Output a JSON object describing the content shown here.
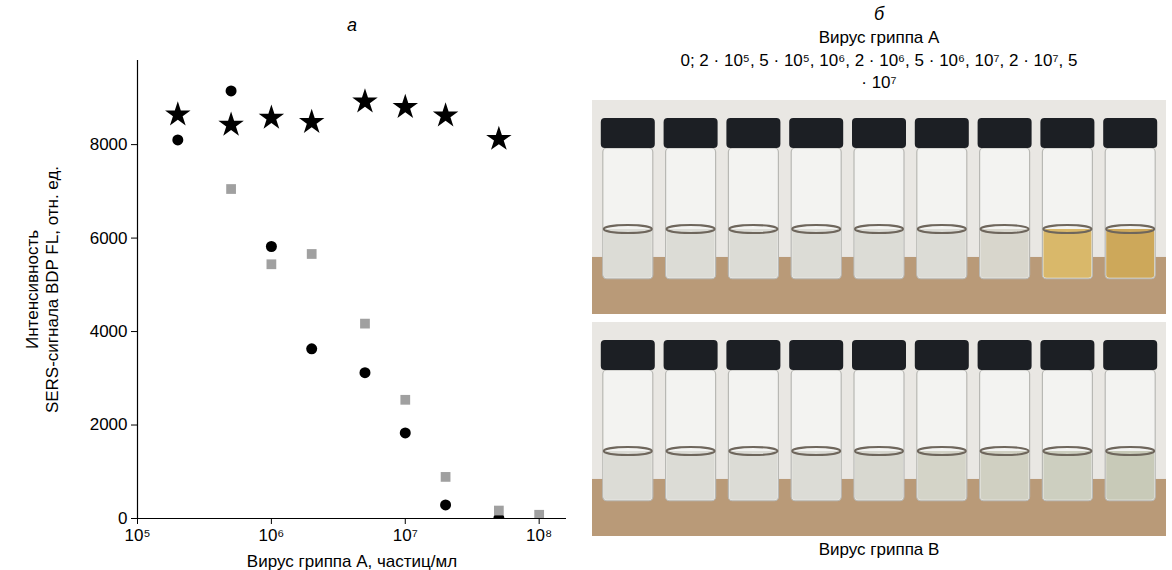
{
  "chart_data": {
    "type": "scatter",
    "title": "а",
    "x_label": "Вирус гриппа А, частиц/мл",
    "y_label": "Интенсивность\nSERS-сигнала BDP FL, отн. ед.",
    "log": "x",
    "xlim": [
      100000,
      160000000
    ],
    "xticks": [
      {
        "value": 100000,
        "label": "10⁵"
      },
      {
        "value": 1000000,
        "label": "10⁶"
      },
      {
        "value": 10000000,
        "label": "10⁷"
      },
      {
        "value": 100000000,
        "label": "10⁸"
      }
    ],
    "ylim": [
      0,
      9800
    ],
    "yticks": [
      0,
      2000,
      4000,
      6000,
      8000
    ],
    "grid": false,
    "series": [
      {
        "color": "#000000",
        "marker": "circle",
        "x": [
          200000,
          500000,
          1000000,
          2000000,
          5000000,
          10000000,
          20000000,
          50000000
        ],
        "values": [
          8100,
          9150,
          5820,
          3630,
          3120,
          1830,
          290,
          0
        ]
      },
      {
        "color": "#a0a0a0",
        "marker": "square",
        "x": [
          500000,
          1000000,
          2000000,
          5000000,
          10000000,
          20000000,
          50000000,
          100000000
        ],
        "values": [
          7050,
          5440,
          5660,
          4170,
          2540,
          890,
          170,
          80
        ]
      },
      {
        "color": "#000000",
        "marker": "star",
        "x": [
          200000,
          500000,
          1000000,
          2000000,
          5000000,
          10000000,
          20000000,
          50000000
        ],
        "values": [
          8640,
          8420,
          8570,
          8480,
          8920,
          8800,
          8620,
          8120
        ]
      }
    ]
  },
  "panel_b": {
    "letter": "б",
    "title_top": "Вирус гриппа А",
    "concentrations": "0; 2 · 10⁵, 5 · 10⁵, 10⁶, 2 · 10⁶, 5 · 10⁶, 10⁷, 2 · 10⁷, 5 · 10⁷",
    "title_bottom": "Вирус гриппа В"
  }
}
